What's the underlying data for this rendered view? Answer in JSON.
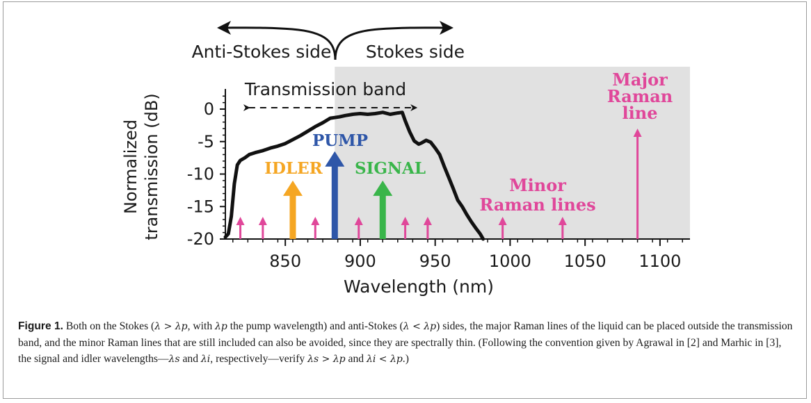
{
  "figure": {
    "top_labels": {
      "anti_stokes": "Anti-Stokes side",
      "stokes": "Stokes side"
    },
    "band_label": "Transmission band",
    "colors": {
      "pump": "#2e56a8",
      "idler": "#f5a623",
      "signal": "#39b54a",
      "raman": "#e0479a",
      "shade": "#e1e1e1",
      "curve": "#111111"
    }
  },
  "chart_data": {
    "type": "line",
    "title": "",
    "xlabel": "Wavelength (nm)",
    "ylabel": "Normalized transmission (dB)",
    "xlim": [
      808,
      1120
    ],
    "ylim": [
      -20,
      3
    ],
    "x_ticks": [
      850,
      900,
      950,
      1000,
      1050,
      1100
    ],
    "y_ticks": [
      0,
      -5,
      -10,
      -15,
      -20
    ],
    "x_tick_labels": [
      "850",
      "900",
      "950",
      "1000",
      "1050",
      "1100"
    ],
    "y_tick_labels": [
      "0",
      "-5",
      "-10",
      "-15",
      "-20"
    ],
    "shaded_region_start_nm": 883,
    "transmission_band_nm": [
      822,
      940
    ],
    "series": [
      {
        "x": [
          810,
          812,
          814,
          816,
          818,
          820,
          823,
          826,
          830,
          835,
          840,
          845,
          850,
          855,
          860,
          865,
          870,
          875,
          880,
          883,
          886,
          890,
          895,
          900,
          905,
          910,
          915,
          920,
          925,
          928,
          930,
          933,
          936,
          939,
          941,
          944,
          947,
          950,
          953,
          956,
          959,
          962,
          965,
          968,
          971,
          974,
          977,
          980,
          982
        ],
        "y": [
          -19.7,
          -19.2,
          -16.5,
          -11.5,
          -8.6,
          -7.9,
          -7.5,
          -7.0,
          -6.7,
          -6.4,
          -6.0,
          -5.7,
          -5.3,
          -4.7,
          -4.1,
          -3.4,
          -2.7,
          -2.1,
          -1.4,
          -1.3,
          -1.2,
          -1.0,
          -0.8,
          -0.7,
          -0.8,
          -0.7,
          -0.5,
          -0.8,
          -0.6,
          -0.5,
          -1.8,
          -3.5,
          -4.9,
          -5.4,
          -5.2,
          -4.8,
          -5.1,
          -6.0,
          -7.0,
          -8.8,
          -10.5,
          -12.2,
          -14.0,
          -15.0,
          -16.2,
          -17.3,
          -18.3,
          -19.2,
          -20.0
        ]
      }
    ],
    "arrows": [
      {
        "label": "PUMP",
        "x": 883,
        "y_top": -6.5
      },
      {
        "label": "IDLER",
        "x": 855,
        "y_top": -11.0
      },
      {
        "label": "SIGNAL",
        "x": 915,
        "y_top": -11.0
      }
    ],
    "minor_raman_lines_nm": [
      820,
      835,
      870,
      899,
      930,
      945,
      995,
      1035
    ],
    "major_raman_line_nm": 1085,
    "annotations": {
      "pump": "PUMP",
      "idler": "IDLER",
      "signal": "SIGNAL",
      "minor": [
        "Minor",
        "Raman lines"
      ],
      "major": [
        "Major",
        "Raman",
        "line"
      ]
    }
  },
  "caption": {
    "label": "Figure 1.",
    "p1": "Both on the Stokes (",
    "p2": ", with ",
    "p3": " the pump wavelength) and anti-Stokes (",
    "p4": ") sides, the major Raman lines of the liquid can be placed outside the transmission band, and the minor Raman lines that are still included can also be avoided, since they are spectrally thin. (Following the convention given by Agrawal in ",
    "ref2": "[2]",
    "p5": " and Marhic in ",
    "ref3": "[3]",
    "p6": ", the signal and idler wavelengths—",
    "p7": " and ",
    "p8": ", respectively—verify ",
    "p9": " and ",
    "p10": ".)",
    "m_stokes": "λ > λp",
    "m_lp": "λp",
    "m_anti": "λ < λp",
    "m_ls": "λs",
    "m_li": "λi",
    "m_v1": "λs > λp",
    "m_v2": "λi < λp"
  }
}
